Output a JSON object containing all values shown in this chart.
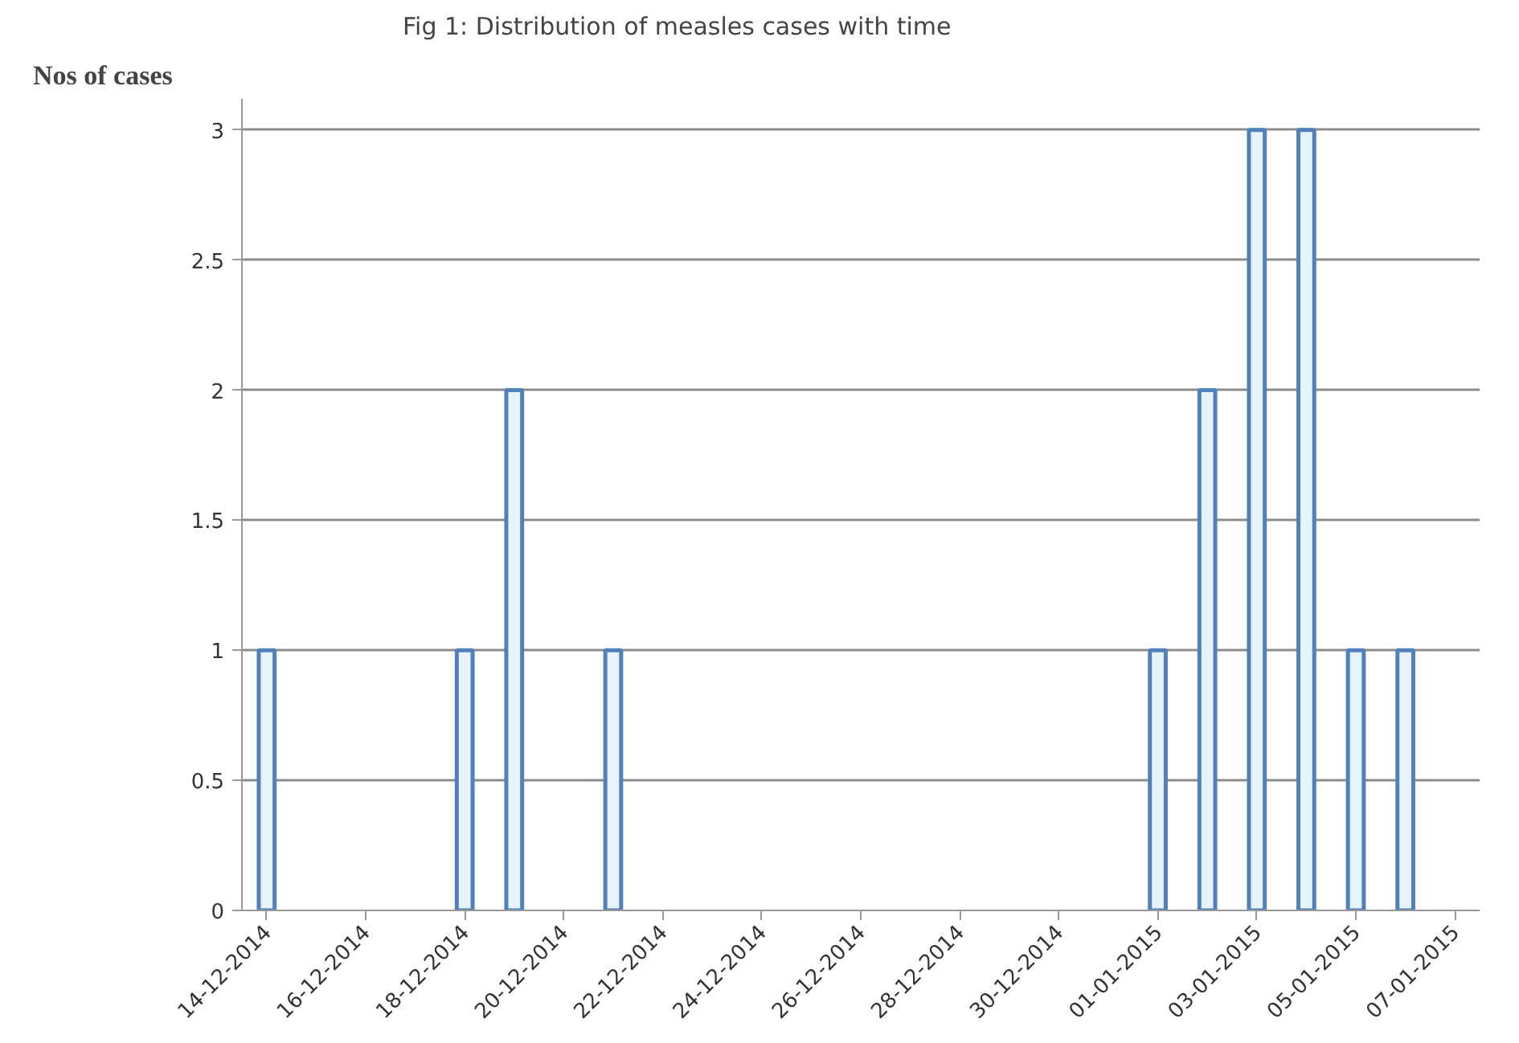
{
  "chart_data": {
    "type": "bar",
    "title": "Fig 1:  Distribution of measles cases with time",
    "ylabel": "Nos of cases",
    "x": [
      "2014-12-14",
      "2014-12-18",
      "2014-12-19",
      "2014-12-21",
      "2015-01-01",
      "2015-01-02",
      "2015-01-03",
      "2015-01-04",
      "2015-01-05",
      "2015-01-06"
    ],
    "values": [
      1,
      1,
      2,
      1,
      1,
      2,
      3,
      3,
      1,
      1
    ],
    "color": "#4f81bd",
    "xlim": [
      "2014-12-13T12:00",
      "2015-01-07T12:00"
    ],
    "xticks": [
      {
        "value": "2014-12-14",
        "label": "14-12-2014"
      },
      {
        "value": "2014-12-16",
        "label": "16-12-2014"
      },
      {
        "value": "2014-12-18",
        "label": "18-12-2014"
      },
      {
        "value": "2014-12-20",
        "label": "20-12-2014"
      },
      {
        "value": "2014-12-22",
        "label": "22-12-2014"
      },
      {
        "value": "2014-12-24",
        "label": "24-12-2014"
      },
      {
        "value": "2014-12-26",
        "label": "26-12-2014"
      },
      {
        "value": "2014-12-28",
        "label": "28-12-2014"
      },
      {
        "value": "2014-12-30",
        "label": "30-12-2014"
      },
      {
        "value": "2015-01-01",
        "label": "01-01-2015"
      },
      {
        "value": "2015-01-03",
        "label": "03-01-2015"
      },
      {
        "value": "2015-01-05",
        "label": "05-01-2015"
      },
      {
        "value": "2015-01-07",
        "label": "07-01-2015"
      }
    ],
    "ylim": [
      0,
      3
    ],
    "yticks": [
      0,
      0.5,
      1,
      1.5,
      2,
      2.5,
      3
    ],
    "grid": "y"
  }
}
